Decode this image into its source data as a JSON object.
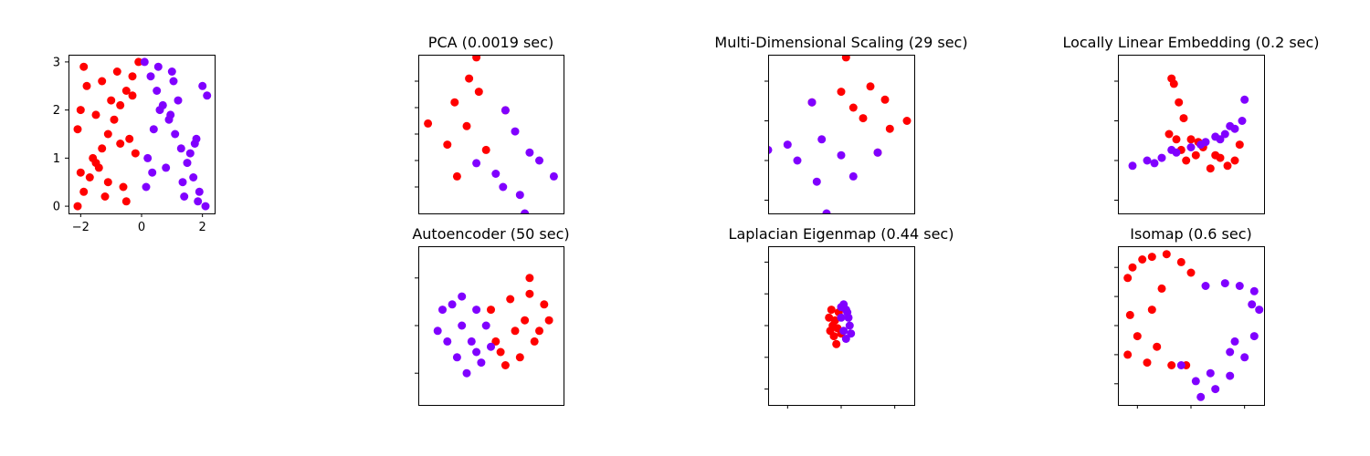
{
  "colors": {
    "red": "#ff0000",
    "purple": "#8000ff"
  },
  "chart_data": [
    {
      "type": "scatter",
      "title": "",
      "xlim": [
        -2.4,
        2.4
      ],
      "ylim": [
        -0.15,
        3.15
      ],
      "xticks": [
        -2,
        0,
        2
      ],
      "xtick_labels": [
        "−2",
        "0",
        "2"
      ],
      "yticks": [
        0,
        1,
        2,
        3
      ],
      "ytick_labels": [
        "0",
        "1",
        "2",
        "3"
      ],
      "grid": false,
      "series": [
        {
          "color": "red",
          "x": [
            -2.1,
            -1.9,
            -1.7,
            -1.5,
            -1.3,
            -1.1,
            -0.9,
            -0.7,
            -0.5,
            -0.3,
            -0.1,
            -2.0,
            -1.6,
            -1.2,
            -0.8,
            -0.4,
            -2.1,
            -1.8,
            -1.4,
            -1.0,
            -0.6,
            -0.2,
            -1.9,
            -1.5,
            -1.1,
            -0.7,
            -0.3,
            -2.0,
            -1.3,
            -0.5
          ],
          "y": [
            0.0,
            0.3,
            0.6,
            0.9,
            1.2,
            1.5,
            1.8,
            2.1,
            2.4,
            2.7,
            3.0,
            2.0,
            1.0,
            0.2,
            2.8,
            1.4,
            1.6,
            2.5,
            0.8,
            2.2,
            0.4,
            1.1,
            2.9,
            1.9,
            0.5,
            1.3,
            2.3,
            0.7,
            2.6,
            0.1
          ]
        },
        {
          "color": "purple",
          "x": [
            0.1,
            0.3,
            0.5,
            0.7,
            0.9,
            1.1,
            1.3,
            1.5,
            1.7,
            1.9,
            2.1,
            0.2,
            0.6,
            1.0,
            1.4,
            1.8,
            2.0,
            0.4,
            0.8,
            1.2,
            1.6,
            0.15,
            0.55,
            0.95,
            1.35,
            1.75,
            2.15,
            0.35,
            1.05,
            1.85
          ],
          "y": [
            3.0,
            2.7,
            2.4,
            2.1,
            1.8,
            1.5,
            1.2,
            0.9,
            0.6,
            0.3,
            0.0,
            1.0,
            2.0,
            2.8,
            0.2,
            1.4,
            2.5,
            1.6,
            0.8,
            2.2,
            1.1,
            0.4,
            2.9,
            1.9,
            0.5,
            1.3,
            2.3,
            0.7,
            2.6,
            0.1
          ]
        }
      ]
    },
    {
      "type": "scatter",
      "title": "PCA (0.0019 sec)",
      "xlim": [
        -3.0,
        3.0
      ],
      "ylim": [
        -3.0,
        3.0
      ],
      "yticks": [
        -2,
        -1,
        0,
        1,
        2
      ],
      "ytick_labels": [],
      "grid": false,
      "series": [
        {
          "color": "red",
          "x": [
            -2.6,
            -0.6,
            0.6,
            -1.4,
            -1.5,
            -0.5,
            -1.0,
            -1.8,
            -0.2,
            -0.9
          ],
          "y": [
            0.4,
            2.9,
            0.9,
            -1.6,
            1.2,
            1.6,
            0.3,
            -0.4,
            -0.6,
            2.1
          ]
        },
        {
          "color": "purple",
          "x": [
            0.6,
            2.6,
            1.4,
            -0.6,
            1.6,
            0.5,
            1.0,
            2.0,
            0.2,
            1.2
          ],
          "y": [
            0.9,
            -1.6,
            -3.0,
            -1.1,
            -0.7,
            -2.0,
            0.1,
            -1.0,
            -1.5,
            -2.3
          ]
        }
      ]
    },
    {
      "type": "scatter",
      "title": "Multi-Dimensional Scaling (29 sec)",
      "xlim": [
        -3.0,
        3.0
      ],
      "ylim": [
        -3.0,
        3.0
      ],
      "yticks": [
        -2.5,
        -1,
        0.5,
        2
      ],
      "ytick_labels": [],
      "grid": false,
      "series": [
        {
          "color": "red",
          "x": [
            0.2,
            2.7,
            1.5,
            -1.2,
            1.2,
            0.9,
            0.0,
            2.0,
            0.5,
            1.8
          ],
          "y": [
            2.9,
            0.5,
            -0.7,
            1.2,
            1.8,
            0.6,
            1.6,
            0.2,
            1.0,
            1.3
          ]
        },
        {
          "color": "purple",
          "x": [
            -1.2,
            1.5,
            -0.6,
            -3.0,
            -0.8,
            -1.8,
            -1.0,
            0.5,
            -2.2,
            0.0
          ],
          "y": [
            1.2,
            -0.7,
            -3.0,
            -0.6,
            -0.2,
            -1.0,
            -1.8,
            -1.6,
            -0.4,
            -0.8
          ]
        }
      ]
    },
    {
      "type": "scatter",
      "title": "Locally Linear Embedding (0.2 sec)",
      "xlim": [
        -3.0,
        3.0
      ],
      "ylim": [
        -3.0,
        3.0
      ],
      "yticks": [
        -2.5,
        -1,
        0.5,
        2
      ],
      "ytick_labels": [],
      "grid": false,
      "series": [
        {
          "color": "red",
          "x": [
            -0.8,
            -0.7,
            -0.5,
            -0.3,
            -0.9,
            -0.6,
            0.0,
            0.5,
            1.0,
            1.5,
            2.0,
            0.2,
            -0.2,
            0.8,
            1.2,
            1.8,
            0.3,
            -0.4
          ],
          "y": [
            2.1,
            1.9,
            1.2,
            0.6,
            0.0,
            -0.2,
            -0.2,
            -0.5,
            -0.8,
            -1.2,
            -0.4,
            -0.8,
            -1.0,
            -1.3,
            -0.9,
            -1.0,
            -0.3,
            -0.6
          ]
        },
        {
          "color": "purple",
          "x": [
            -2.4,
            -1.8,
            -1.2,
            -0.6,
            0.0,
            0.6,
            1.0,
            1.4,
            1.8,
            2.1,
            2.2,
            1.6,
            -1.5,
            -0.8,
            0.4,
            1.2
          ],
          "y": [
            -1.2,
            -1.0,
            -0.9,
            -0.7,
            -0.5,
            -0.3,
            -0.1,
            0.0,
            0.2,
            0.5,
            1.3,
            0.3,
            -1.1,
            -0.6,
            -0.4,
            -0.2
          ]
        }
      ]
    },
    {
      "type": "scatter",
      "title": "Autoencoder (50 sec)",
      "xlim": [
        -3.0,
        3.0
      ],
      "ylim": [
        -3.0,
        3.0
      ],
      "yticks": [
        -1.8,
        0,
        1.8
      ],
      "ytick_labels": [],
      "grid": false,
      "series": [
        {
          "color": "red",
          "x": [
            0.0,
            0.8,
            1.6,
            2.2,
            2.4,
            1.8,
            1.2,
            0.6,
            0.2,
            1.0,
            1.4,
            2.0,
            0.4,
            1.6
          ],
          "y": [
            0.6,
            1.0,
            1.2,
            0.8,
            0.2,
            -0.6,
            -1.2,
            -1.5,
            -0.6,
            -0.2,
            0.2,
            -0.2,
            -1.0,
            1.8
          ]
        },
        {
          "color": "purple",
          "x": [
            -2.0,
            -1.6,
            -1.2,
            -0.6,
            -0.2,
            0.0,
            -0.4,
            -1.0,
            -1.4,
            -1.8,
            -0.8,
            -1.2,
            -0.6,
            -2.2
          ],
          "y": [
            0.6,
            0.8,
            1.1,
            0.6,
            0.0,
            -0.8,
            -1.4,
            -1.8,
            -1.2,
            -0.6,
            -0.6,
            0.0,
            -1.0,
            -0.2
          ]
        }
      ]
    },
    {
      "type": "scatter",
      "title": "Laplacian Eigenmap (0.44 sec)",
      "xlim": [
        -3.0,
        3.0
      ],
      "ylim": [
        -3.0,
        3.0
      ],
      "xticks": [
        -2.2,
        0,
        2.2
      ],
      "yticks": [
        -2.4,
        -1.2,
        0,
        1.2,
        2.4
      ],
      "ytick_labels": [],
      "grid": false,
      "series": [
        {
          "color": "red",
          "x": [
            -0.5,
            -0.4,
            -0.35,
            -0.3,
            -0.2,
            -0.1,
            0.0,
            -0.45,
            -0.25,
            -0.15
          ],
          "y": [
            0.3,
            0.6,
            0.0,
            -0.4,
            -0.7,
            0.5,
            -0.3,
            -0.2,
            0.2,
            -0.1
          ]
        },
        {
          "color": "purple",
          "x": [
            0.0,
            0.1,
            0.2,
            0.3,
            0.35,
            0.4,
            0.2,
            0.1,
            0.0,
            0.25
          ],
          "y": [
            0.7,
            0.8,
            0.6,
            0.3,
            0.0,
            -0.3,
            -0.5,
            -0.2,
            0.3,
            0.5
          ]
        }
      ]
    },
    {
      "type": "scatter",
      "title": "Isomap (0.6 sec)",
      "xlim": [
        -3.0,
        3.0
      ],
      "ylim": [
        -3.0,
        3.0
      ],
      "xticks": [
        -2.2,
        0,
        2.2
      ],
      "yticks": [
        -2.2,
        -1.1,
        0,
        1.1,
        2.2
      ],
      "ytick_labels": [],
      "grid": false,
      "series": [
        {
          "color": "red",
          "x": [
            -2.6,
            -2.4,
            -2.0,
            -1.6,
            -1.0,
            -0.4,
            0.0,
            -1.2,
            -1.6,
            -2.2,
            -2.6,
            -1.8,
            -0.8,
            -0.2,
            -2.5,
            -1.4
          ],
          "y": [
            1.8,
            2.2,
            2.5,
            2.6,
            2.7,
            2.4,
            2.0,
            1.4,
            0.6,
            -0.4,
            -1.1,
            -1.4,
            -1.5,
            -1.5,
            0.4,
            -0.8
          ]
        },
        {
          "color": "purple",
          "x": [
            0.6,
            1.4,
            2.0,
            2.6,
            2.8,
            2.6,
            2.2,
            1.6,
            1.0,
            0.4,
            -0.4,
            0.8,
            1.8,
            2.5,
            1.6,
            0.2
          ],
          "y": [
            1.5,
            1.6,
            1.5,
            1.3,
            0.6,
            -0.4,
            -1.2,
            -1.9,
            -2.4,
            -2.7,
            -1.5,
            -1.8,
            -0.6,
            0.8,
            -1.0,
            -2.1
          ]
        }
      ]
    }
  ]
}
